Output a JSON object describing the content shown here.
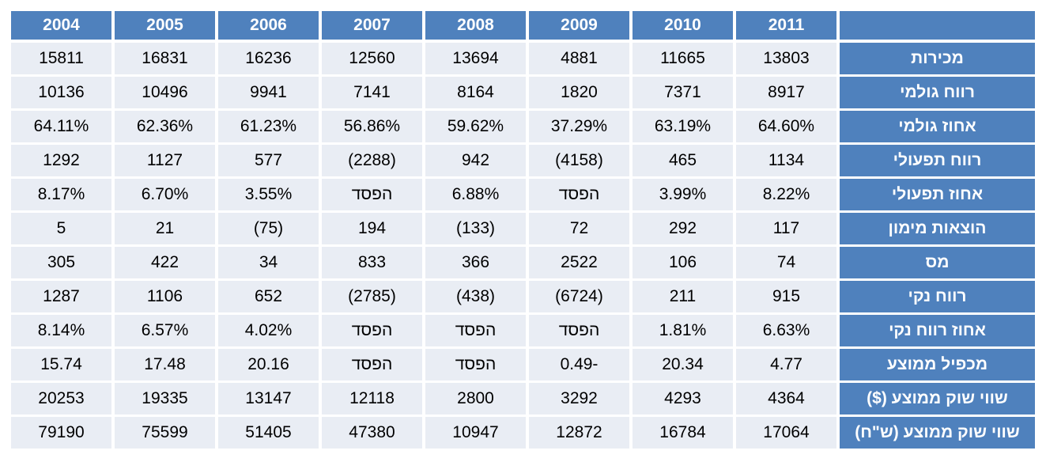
{
  "table": {
    "columns": [
      "2004",
      "2005",
      "2006",
      "2007",
      "2008",
      "2009",
      "2010",
      "2011"
    ],
    "rows": [
      {
        "label": "מכירות",
        "cells": [
          "15811",
          "16831",
          "16236",
          "12560",
          "13694",
          "4881",
          "11665",
          "13803"
        ]
      },
      {
        "label": "רווח גולמי",
        "cells": [
          "10136",
          "10496",
          "9941",
          "7141",
          "8164",
          "1820",
          "7371",
          "8917"
        ]
      },
      {
        "label": "אחוז גולמי",
        "cells": [
          "64.11%",
          "62.36%",
          "61.23%",
          "56.86%",
          "59.62%",
          "37.29%",
          "63.19%",
          "64.60%"
        ]
      },
      {
        "label": "רווח תפעולי",
        "cells": [
          "1292",
          "1127",
          "577",
          "(2288)",
          "942",
          "(4158)",
          "465",
          "1134"
        ]
      },
      {
        "label": "אחוז תפעולי",
        "cells": [
          "8.17%",
          "6.70%",
          "3.55%",
          "הפסד",
          "6.88%",
          "הפסד",
          "3.99%",
          "8.22%"
        ]
      },
      {
        "label": "הוצאות מימון",
        "cells": [
          "5",
          "21",
          "(75)",
          "194",
          "(133)",
          "72",
          "292",
          "117"
        ]
      },
      {
        "label": "מס",
        "cells": [
          "305",
          "422",
          "34",
          "833",
          "366",
          "2522",
          "106",
          "74"
        ]
      },
      {
        "label": "רווח נקי",
        "cells": [
          "1287",
          "1106",
          "652",
          "(2785)",
          "(438)",
          "(6724)",
          "211",
          "915"
        ]
      },
      {
        "label": "אחוז רווח נקי",
        "cells": [
          "8.14%",
          "6.57%",
          "4.02%",
          "הפסד",
          "הפסד",
          "הפסד",
          "1.81%",
          "6.63%"
        ]
      },
      {
        "label": "מכפיל ממוצע",
        "cells": [
          "15.74",
          "17.48",
          "20.16",
          "הפסד",
          "הפסד",
          "0.49-",
          "20.34",
          "4.77"
        ]
      },
      {
        "label": "שווי שוק ממוצע ($)",
        "cells": [
          "20253",
          "19335",
          "13147",
          "12118",
          "2800",
          "3292",
          "4293",
          "4364"
        ]
      },
      {
        "label": "שווי שוק ממוצע (ש\"ח)",
        "cells": [
          "79190",
          "75599",
          "51405",
          "47380",
          "10947",
          "12872",
          "16784",
          "17064"
        ]
      }
    ]
  }
}
